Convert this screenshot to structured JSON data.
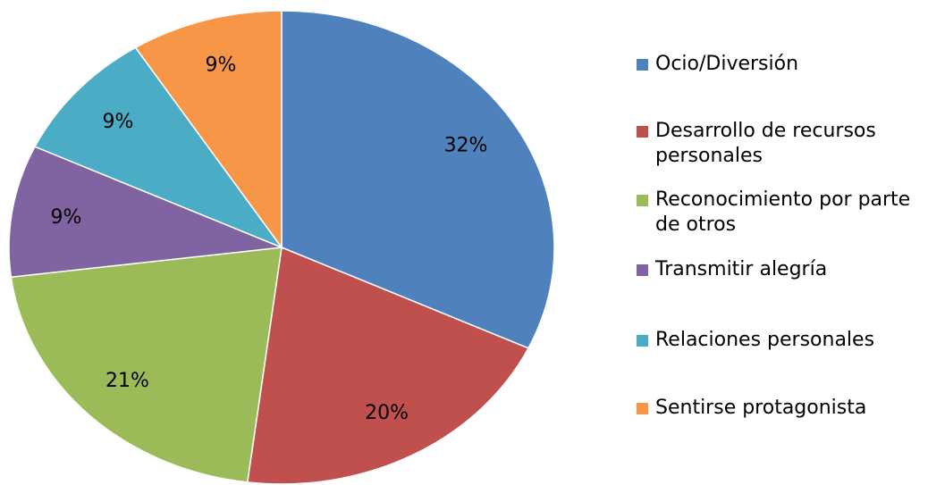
{
  "chart_data": {
    "type": "pie",
    "categories": [
      "Ocio/Diversión",
      "Desarrollo de recursos personales",
      "Reconocimiento por parte de otros",
      "Transmitir alegría",
      "Relaciones personales",
      "Sentirse protagonista"
    ],
    "values": [
      32,
      20,
      21,
      9,
      9,
      9
    ],
    "value_labels": [
      "32%",
      "20%",
      "21%",
      "9%",
      "9%",
      "9%"
    ],
    "colors": [
      "#4f81bd",
      "#c0504d",
      "#9bbb59",
      "#8064a2",
      "#4bacc6",
      "#f79646"
    ],
    "legend": "right"
  }
}
